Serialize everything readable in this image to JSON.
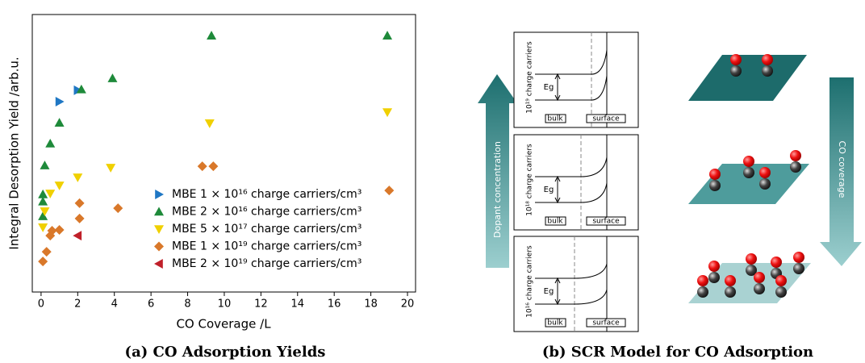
{
  "chart_data": {
    "type": "scatter",
    "xlabel": "CO Coverage /L",
    "ylabel": "Integral Desorption Yield /arb.u.",
    "xlim": [
      -0.48,
      20.44
    ],
    "xticks": [
      0,
      2,
      4,
      6,
      8,
      10,
      12,
      14,
      16,
      18,
      20
    ],
    "ylim": [
      0,
      10
    ],
    "legend": "lower right",
    "series": [
      {
        "name": "MBE 1 × 10¹⁶ charge carriers/cm³",
        "color": "#1f77c4",
        "marker": "triangle-right",
        "x": [
          1.0,
          2.0
        ],
        "values": [
          6.86,
          7.27
        ]
      },
      {
        "name": "MBE 2 × 10¹⁶ charge carriers/cm³",
        "color": "#1e8a3a",
        "marker": "triangle-up",
        "x": [
          0.1,
          0.1,
          0.1,
          0.2,
          0.5,
          1.0,
          2.2,
          3.9,
          9.3,
          18.9
        ],
        "values": [
          2.73,
          3.26,
          3.52,
          4.56,
          5.35,
          6.1,
          7.3,
          7.7,
          9.24,
          9.24
        ]
      },
      {
        "name": "MBE 5 × 10¹⁷ charge carriers/cm³",
        "color": "#f0d000",
        "marker": "triangle-down",
        "x": [
          0.1,
          0.2,
          0.5,
          1.0,
          2.0,
          3.8,
          9.2,
          18.9
        ],
        "values": [
          2.33,
          2.91,
          3.55,
          3.84,
          4.13,
          4.48,
          6.08,
          6.48
        ]
      },
      {
        "name": "MBE 1 × 10¹⁹ charge carriers/cm³",
        "color": "#d9782a",
        "marker": "diamond",
        "x": [
          0.1,
          0.3,
          0.5,
          0.6,
          1.0,
          2.1,
          2.1,
          4.2,
          8.8,
          9.4,
          19.0
        ],
        "values": [
          1.1,
          1.45,
          2.03,
          2.21,
          2.24,
          2.65,
          3.2,
          3.02,
          4.53,
          4.53,
          3.66
        ]
      },
      {
        "name": "MBE 2 × 10¹⁹ charge carriers/cm³",
        "color": "#c0202a",
        "marker": "triangle-left",
        "x": [
          2.0
        ],
        "values": [
          2.03
        ]
      }
    ]
  },
  "captions": [
    "(a) CO Adsorption Yields",
    "(b) SCR Model for CO Adsorption"
  ],
  "diagram": {
    "left_arrow": "Dopant concentration",
    "right_arrow": "CO coverage",
    "panels": [
      {
        "carriers": "10¹⁹ charge carriers",
        "gap": "Eg",
        "bulk": "bulk",
        "surface": "surface"
      },
      {
        "carriers": "10¹⁸ charge carriers",
        "gap": "Eg",
        "bulk": "bulk",
        "surface": "surface"
      },
      {
        "carriers": "10¹⁶ charge carriers",
        "gap": "Eg",
        "bulk": "bulk",
        "surface": "surface"
      }
    ]
  }
}
